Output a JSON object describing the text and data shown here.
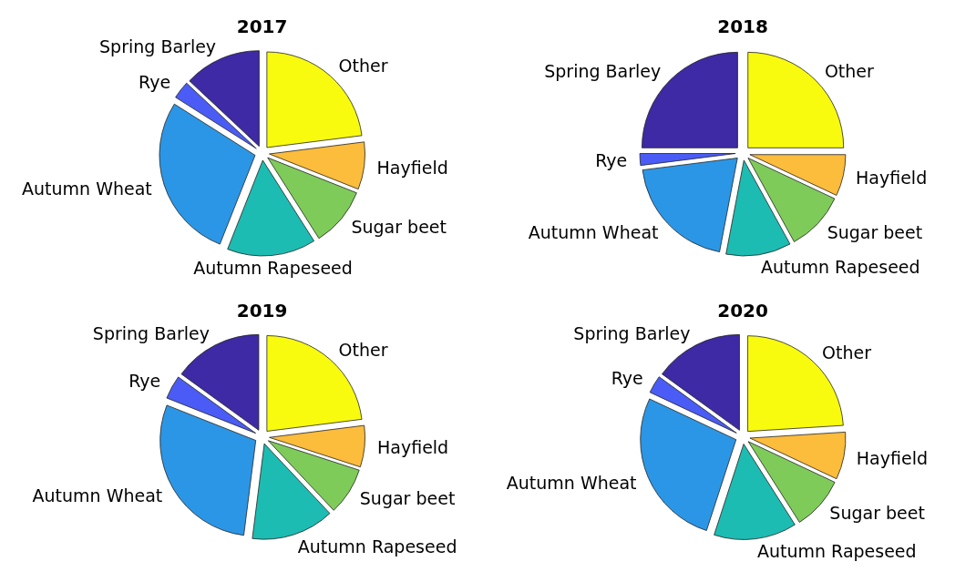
{
  "chart_data": [
    {
      "type": "pie",
      "title": "2017",
      "categories": [
        "Other",
        "Hayfield",
        "Sugar beet",
        "Autumn Rapeseed",
        "Autumn Wheat",
        "Rye",
        "Spring Barley"
      ],
      "values": [
        23,
        8,
        10,
        15,
        28,
        3,
        13
      ],
      "colors": [
        "#f9fb0e",
        "#fcbc3c",
        "#7fcb5a",
        "#1cbcb2",
        "#2c96e6",
        "#4a5cf5",
        "#3d2aa4"
      ]
    },
    {
      "type": "pie",
      "title": "2018",
      "categories": [
        "Other",
        "Hayfield",
        "Sugar beet",
        "Autumn Rapeseed",
        "Autumn Wheat",
        "Rye",
        "Spring Barley"
      ],
      "values": [
        25,
        7,
        10,
        11,
        20,
        2,
        25
      ],
      "colors": [
        "#f9fb0e",
        "#fcbc3c",
        "#7fcb5a",
        "#1cbcb2",
        "#2c96e6",
        "#4a5cf5",
        "#3d2aa4"
      ]
    },
    {
      "type": "pie",
      "title": "2019",
      "categories": [
        "Other",
        "Hayfield",
        "Sugar beet",
        "Autumn Rapeseed",
        "Autumn Wheat",
        "Rye",
        "Spring Barley"
      ],
      "values": [
        23,
        7,
        8,
        14,
        29,
        4,
        15
      ],
      "colors": [
        "#f9fb0e",
        "#fcbc3c",
        "#7fcb5a",
        "#1cbcb2",
        "#2c96e6",
        "#4a5cf5",
        "#3d2aa4"
      ]
    },
    {
      "type": "pie",
      "title": "2020",
      "categories": [
        "Other",
        "Hayfield",
        "Sugar beet",
        "Autumn Rapeseed",
        "Autumn Wheat",
        "Rye",
        "Spring Barley"
      ],
      "values": [
        24,
        8,
        9,
        14,
        27,
        3,
        15
      ],
      "colors": [
        "#f9fb0e",
        "#fcbc3c",
        "#7fcb5a",
        "#1cbcb2",
        "#2c96e6",
        "#4a5cf5",
        "#3d2aa4"
      ]
    }
  ]
}
